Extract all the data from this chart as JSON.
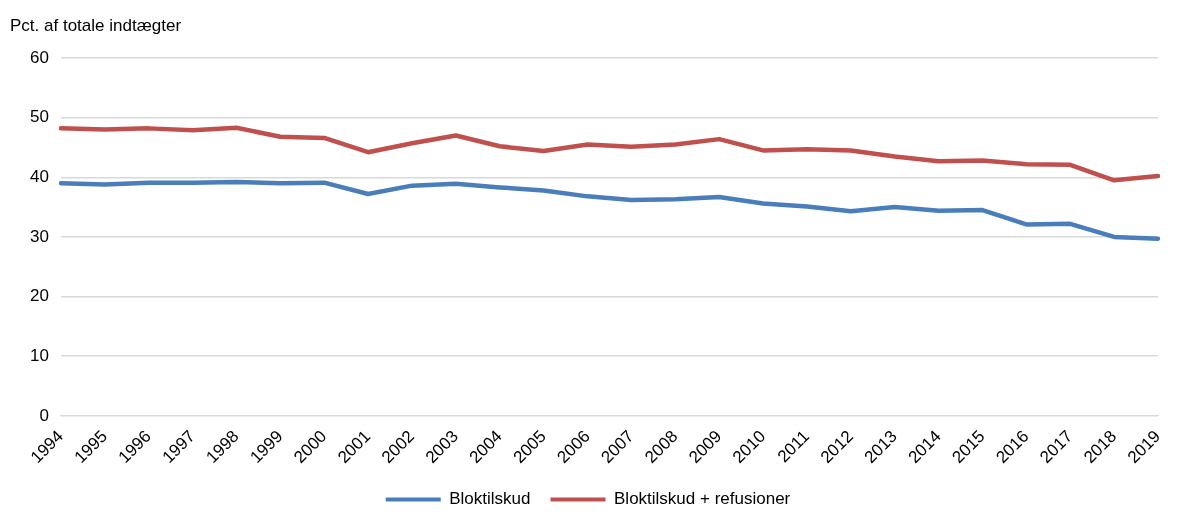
{
  "chart_data": {
    "type": "line",
    "ylabel": "Pct. af totale indtægter",
    "categories": [
      "1994",
      "1995",
      "1996",
      "1997",
      "1998",
      "1999",
      "2000",
      "2001",
      "2002",
      "2003",
      "2004",
      "2005",
      "2006",
      "2007",
      "2008",
      "2009",
      "2010",
      "2011",
      "2012",
      "2013",
      "2014",
      "2015",
      "2016",
      "2017",
      "2018",
      "2019"
    ],
    "series": [
      {
        "name": "Bloktilskud",
        "color": "#4a7ebb",
        "values": [
          39.0,
          38.8,
          39.1,
          39.1,
          39.2,
          39.0,
          39.1,
          37.2,
          38.6,
          38.9,
          38.3,
          37.8,
          36.8,
          36.2,
          36.3,
          36.7,
          35.6,
          35.1,
          34.3,
          35.0,
          34.4,
          34.5,
          32.1,
          32.2,
          30.0,
          29.7
        ]
      },
      {
        "name": "Bloktilskud + refusioner",
        "color": "#c0504d",
        "values": [
          48.2,
          48.0,
          48.2,
          47.9,
          48.3,
          46.8,
          46.6,
          44.2,
          45.7,
          47.0,
          45.2,
          44.4,
          45.5,
          45.1,
          45.5,
          46.4,
          44.5,
          44.7,
          44.5,
          43.5,
          42.7,
          42.8,
          42.2,
          42.1,
          39.5,
          40.2
        ]
      }
    ],
    "ylim": [
      0,
      60
    ],
    "yticks": [
      0,
      10,
      20,
      30,
      40,
      50,
      60
    ],
    "grid": "y",
    "legend": "bottom",
    "marker": "none",
    "line_style": "solid"
  }
}
